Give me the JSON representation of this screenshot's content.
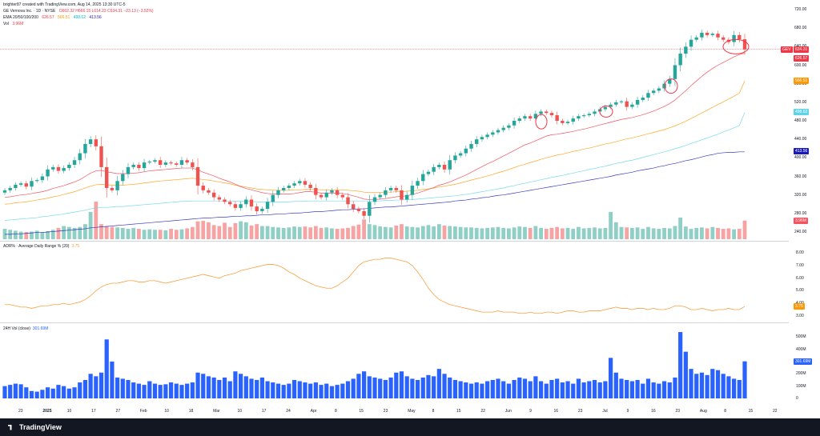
{
  "header": {
    "created": "brighter87 created with TradingView.com, Aug 14, 2025 13:30 UTC-5",
    "symbol": "GE Vernova Inc. · 1D · NYSE",
    "ohlc": "O662.32 H666.15 L614.23 C634.31 −23.13 (−3.52%)",
    "ema_label": "EMA 20/50/100/200",
    "ema_values": [
      "626.57",
      "566.51",
      "498.62",
      "413.56"
    ],
    "vol_label": "Vol",
    "vol_value": "3.96M"
  },
  "price_axis": {
    "ticks": [
      "720.00",
      "680.00",
      "640.00",
      "600.00",
      "560.00",
      "520.00",
      "480.00",
      "440.00",
      "400.00",
      "360.00",
      "320.00",
      "280.00",
      "240.00"
    ],
    "tags": [
      {
        "text": "GEV",
        "color": "#f23645"
      },
      {
        "text": "634.31",
        "color": "#f23645"
      },
      {
        "text": "626.57",
        "color": "#f23645"
      },
      {
        "text": "566.51",
        "color": "#ff9800"
      },
      {
        "text": "498.62",
        "color": "#5fd3e8"
      },
      {
        "text": "413.56",
        "color": "#1a1ab8"
      },
      {
        "text": "3.96M",
        "color": "#f7525f"
      }
    ]
  },
  "adr_pane": {
    "title": "ADR% · Average Daily Range % (20)",
    "value": "3.75",
    "ticks": [
      "8.00",
      "7.00",
      "6.00",
      "5.00",
      "4.00",
      "3.00"
    ],
    "tag": "3.75"
  },
  "vol24_pane": {
    "title": "24H Vol (close)",
    "value": "301.69M",
    "ticks": [
      "500M",
      "400M",
      "300M",
      "200M",
      "100M",
      "0"
    ],
    "tag": "301.69M"
  },
  "time_axis": {
    "labels": [
      "23",
      "2025",
      "10",
      "17",
      "27",
      "Feb",
      "10",
      "18",
      "Mar",
      "10",
      "17",
      "24",
      "Apr",
      "8",
      "15",
      "23",
      "May",
      "8",
      "15",
      "22",
      "Jun",
      "9",
      "16",
      "23",
      "Jul",
      "9",
      "16",
      "23",
      "Aug",
      "8",
      "15",
      "22"
    ]
  },
  "footer": {
    "brand": "TradingView"
  },
  "colors": {
    "up": "#26a69a",
    "down": "#ef5350",
    "ema20": "#f23645",
    "ema50": "#ff9800",
    "ema100": "#5fd3e8",
    "ema200": "#1a1ab8",
    "adr": "#f7a040",
    "vol24": "#2962ff"
  },
  "chart_data": [
    {
      "type": "candlestick",
      "title": "GE Vernova Inc. · 1D · NYSE",
      "ylim": [
        240,
        720
      ],
      "close": [
        330,
        335,
        342,
        345,
        338,
        350,
        352,
        360,
        375,
        380,
        372,
        378,
        385,
        395,
        410,
        430,
        440,
        425,
        380,
        335,
        330,
        350,
        365,
        380,
        385,
        378,
        390,
        392,
        395,
        385,
        390,
        388,
        385,
        395,
        390,
        380,
        340,
        330,
        325,
        315,
        310,
        305,
        300,
        292,
        300,
        310,
        295,
        285,
        290,
        305,
        320,
        330,
        335,
        340,
        345,
        350,
        342,
        335,
        320,
        315,
        325,
        330,
        320,
        315,
        300,
        290,
        285,
        275,
        305,
        315,
        320,
        330,
        335,
        330,
        310,
        320,
        340,
        350,
        365,
        370,
        380,
        385,
        375,
        395,
        405,
        410,
        420,
        430,
        440,
        445,
        450,
        455,
        460,
        465,
        470,
        480,
        485,
        490,
        485,
        495,
        500,
        497,
        492,
        480,
        475,
        478,
        485,
        490,
        492,
        495,
        500,
        505,
        510,
        515,
        520,
        522,
        510,
        515,
        525,
        530,
        540,
        545,
        550,
        560,
        570,
        600,
        625,
        640,
        655,
        660,
        670,
        665,
        668,
        660,
        655,
        650,
        665,
        656,
        634
      ],
      "ema20": [
        315,
        316,
        318,
        320,
        321,
        323,
        325,
        327,
        330,
        334,
        337,
        340,
        344,
        348,
        353,
        360,
        367,
        372,
        373,
        370,
        368,
        366,
        366,
        366,
        367,
        368,
        370,
        372,
        373,
        374,
        375,
        376,
        377,
        378,
        378,
        378,
        374,
        369,
        365,
        361,
        356,
        352,
        348,
        343,
        338,
        334,
        331,
        328,
        325,
        323,
        322,
        322,
        322,
        322,
        323,
        325,
        327,
        327,
        326,
        324,
        324,
        324,
        324,
        323,
        321,
        318,
        315,
        311,
        310,
        310,
        311,
        312,
        314,
        316,
        317,
        318,
        321,
        324,
        328,
        332,
        336,
        341,
        344,
        348,
        353,
        358,
        363,
        369,
        375,
        381,
        387,
        392,
        398,
        404,
        410,
        416,
        422,
        428,
        432,
        437,
        442,
        447,
        450,
        451,
        453,
        455,
        457,
        460,
        462,
        465,
        468,
        471,
        474,
        477,
        480,
        483,
        485,
        487,
        490,
        493,
        497,
        501,
        506,
        511,
        517,
        525,
        535,
        545,
        556,
        566,
        576,
        585,
        593,
        600,
        606,
        612,
        618,
        623,
        626
      ],
      "ema50": [
        300,
        301,
        303,
        304,
        305,
        307,
        309,
        311,
        313,
        316,
        318,
        321,
        324,
        327,
        331,
        335,
        339,
        342,
        343,
        342,
        341,
        341,
        341,
        342,
        343,
        344,
        346,
        347,
        349,
        350,
        351,
        352,
        353,
        354,
        355,
        356,
        355,
        353,
        352,
        350,
        348,
        346,
        344,
        341,
        339,
        337,
        335,
        333,
        332,
        331,
        330,
        330,
        330,
        330,
        331,
        331,
        332,
        332,
        332,
        331,
        331,
        331,
        331,
        331,
        330,
        329,
        328,
        326,
        325,
        325,
        325,
        326,
        326,
        327,
        327,
        328,
        329,
        330,
        332,
        333,
        335,
        337,
        339,
        341,
        343,
        346,
        349,
        352,
        355,
        358,
        361,
        364,
        368,
        371,
        375,
        379,
        383,
        386,
        390,
        393,
        397,
        400,
        403,
        406,
        408,
        411,
        414,
        416,
        419,
        421,
        424,
        427,
        430,
        432,
        435,
        438,
        441,
        443,
        446,
        449,
        452,
        455,
        458,
        461,
        465,
        469,
        474,
        479,
        485,
        491,
        497,
        503,
        509,
        515,
        521,
        527,
        533,
        540,
        566
      ],
      "ema100": [
        265,
        266,
        267,
        268,
        269,
        270,
        271,
        273,
        274,
        276,
        277,
        279,
        281,
        283,
        285,
        287,
        290,
        292,
        293,
        293,
        294,
        295,
        295,
        296,
        297,
        298,
        299,
        300,
        301,
        302,
        303,
        304,
        305,
        306,
        306,
        307,
        307,
        307,
        307,
        307,
        307,
        307,
        307,
        306,
        306,
        306,
        306,
        305,
        305,
        305,
        305,
        305,
        305,
        305,
        306,
        306,
        306,
        307,
        307,
        307,
        307,
        307,
        307,
        307,
        307,
        307,
        307,
        307,
        307,
        307,
        307,
        308,
        308,
        309,
        309,
        310,
        310,
        311,
        312,
        313,
        314,
        315,
        316,
        317,
        318,
        320,
        321,
        323,
        325,
        327,
        329,
        331,
        333,
        335,
        338,
        340,
        343,
        345,
        348,
        350,
        353,
        355,
        358,
        360,
        362,
        365,
        367,
        370,
        372,
        375,
        377,
        380,
        382,
        385,
        388,
        390,
        393,
        395,
        398,
        401,
        404,
        407,
        410,
        413,
        416,
        420,
        423,
        427,
        431,
        435,
        439,
        443,
        447,
        451,
        456,
        460,
        465,
        470,
        498
      ],
      "ema200": [
        235,
        235,
        236,
        236,
        237,
        238,
        239,
        239,
        240,
        241,
        242,
        243,
        244,
        245,
        246,
        247,
        249,
        250,
        251,
        252,
        253,
        254,
        255,
        256,
        257,
        258,
        259,
        260,
        261,
        262,
        263,
        264,
        265,
        266,
        267,
        268,
        269,
        270,
        270,
        271,
        272,
        272,
        273,
        274,
        274,
        275,
        275,
        276,
        277,
        277,
        278,
        279,
        279,
        280,
        281,
        281,
        282,
        283,
        284,
        284,
        285,
        286,
        287,
        288,
        288,
        289,
        290,
        290,
        291,
        292,
        293,
        294,
        294,
        295,
        296,
        297,
        298,
        299,
        300,
        301,
        302,
        303,
        304,
        305,
        307,
        308,
        309,
        311,
        312,
        314,
        315,
        317,
        319,
        320,
        322,
        324,
        326,
        328,
        330,
        332,
        334,
        336,
        338,
        340,
        342,
        344,
        346,
        348,
        350,
        352,
        354,
        356,
        358,
        360,
        363,
        365,
        367,
        369,
        372,
        374,
        376,
        378,
        381,
        383,
        386,
        388,
        391,
        394,
        396,
        399,
        402,
        405,
        407,
        410,
        411,
        412,
        412,
        413,
        413
      ],
      "last_close": 634.31
    },
    {
      "type": "bar",
      "title": "Vol",
      "values": [
        2.2,
        2.0,
        1.8,
        1.6,
        1.5,
        1.6,
        1.8,
        1.5,
        1.7,
        2.0,
        2.4,
        2.8,
        2.6,
        2.4,
        2.6,
        3.2,
        5.8,
        8.0,
        3.2,
        2.8,
        2.6,
        2.5,
        2.4,
        2.2,
        2.4,
        2.2,
        2.0,
        2.1,
        2.0,
        2.0,
        1.9,
        2.2,
        2.0,
        2.1,
        2.3,
        2.6,
        3.8,
        3.9,
        3.6,
        3.0,
        2.8,
        3.5,
        2.6,
        3.4,
        3.8,
        3.6,
        2.9,
        3.2,
        2.8,
        2.8,
        2.6,
        2.5,
        2.4,
        2.5,
        2.7,
        2.6,
        2.7,
        2.5,
        2.8,
        2.4,
        2.5,
        2.3,
        2.2,
        2.3,
        2.4,
        2.8,
        3.1,
        4.2,
        3.2,
        3.0,
        2.7,
        2.6,
        2.5,
        2.9,
        3.2,
        2.7,
        2.6,
        2.5,
        2.8,
        3.0,
        2.7,
        3.2,
        2.9,
        2.8,
        2.7,
        2.6,
        2.5,
        2.5,
        2.4,
        2.3,
        2.4,
        2.5,
        2.6,
        2.4,
        2.3,
        2.5,
        2.7,
        2.6,
        2.4,
        2.8,
        2.4,
        2.2,
        2.4,
        2.6,
        2.3,
        2.4,
        2.2,
        2.6,
        2.3,
        2.4,
        2.5,
        2.3,
        2.4,
        5.8,
        3.6,
        2.6,
        2.5,
        2.4,
        2.5,
        2.2,
        2.6,
        2.3,
        2.2,
        2.4,
        2.3,
        2.8,
        4.6,
        2.7,
        2.2,
        2.4,
        2.5,
        2.3,
        2.6,
        2.4,
        2.2,
        2.3,
        2.1,
        2.2,
        3.96
      ]
    },
    {
      "type": "line",
      "title": "ADR% · Average Daily Range % (20)",
      "ylim": [
        2.8,
        8.4
      ],
      "values": [
        3.9,
        3.9,
        3.8,
        3.7,
        3.7,
        3.6,
        3.7,
        3.8,
        3.8,
        3.9,
        3.9,
        4.0,
        3.9,
        4.0,
        4.1,
        4.3,
        4.6,
        5.0,
        5.3,
        5.5,
        5.6,
        5.6,
        5.7,
        5.8,
        5.8,
        5.7,
        5.7,
        5.8,
        5.8,
        5.7,
        5.6,
        5.7,
        5.8,
        5.9,
        6.0,
        6.1,
        6.2,
        6.3,
        6.2,
        6.1,
        6.0,
        6.2,
        6.3,
        6.4,
        6.6,
        6.7,
        6.8,
        6.9,
        7.0,
        7.1,
        7.1,
        7.0,
        6.8,
        6.5,
        6.3,
        6.0,
        5.8,
        5.6,
        5.4,
        5.3,
        5.2,
        5.2,
        5.4,
        5.7,
        6.0,
        6.5,
        7.0,
        7.3,
        7.4,
        7.5,
        7.5,
        7.6,
        7.6,
        7.5,
        7.4,
        7.3,
        7.0,
        6.5,
        5.9,
        5.2,
        4.7,
        4.3,
        4.1,
        3.9,
        3.8,
        3.7,
        3.6,
        3.5,
        3.4,
        3.3,
        3.3,
        3.3,
        3.4,
        3.3,
        3.3,
        3.3,
        3.2,
        3.2,
        3.3,
        3.2,
        3.2,
        3.3,
        3.3,
        3.2,
        3.3,
        3.4,
        3.4,
        3.3,
        3.3,
        3.4,
        3.4,
        3.4,
        3.5,
        3.6,
        3.7,
        3.6,
        3.6,
        3.5,
        3.6,
        3.6,
        3.5,
        3.6,
        3.5,
        3.5,
        3.6,
        3.8,
        3.8,
        3.7,
        3.5,
        3.5,
        3.6,
        3.5,
        3.4,
        3.5,
        3.5,
        3.6,
        3.5,
        3.5,
        3.75
      ],
      "last": 3.75
    },
    {
      "type": "bar",
      "title": "24H Vol (close)",
      "ylim": [
        0,
        560
      ],
      "values": [
        100,
        110,
        120,
        115,
        90,
        60,
        55,
        70,
        90,
        80,
        110,
        100,
        80,
        90,
        130,
        150,
        200,
        180,
        210,
        480,
        300,
        170,
        160,
        150,
        130,
        120,
        110,
        140,
        120,
        110,
        115,
        130,
        120,
        110,
        120,
        130,
        210,
        200,
        180,
        170,
        150,
        170,
        140,
        220,
        200,
        180,
        160,
        150,
        170,
        140,
        130,
        120,
        110,
        120,
        150,
        140,
        130,
        120,
        130,
        110,
        120,
        100,
        110,
        120,
        140,
        160,
        200,
        220,
        180,
        170,
        160,
        150,
        170,
        210,
        220,
        180,
        160,
        150,
        170,
        190,
        180,
        240,
        200,
        170,
        150,
        140,
        130,
        120,
        130,
        120,
        140,
        150,
        160,
        140,
        120,
        150,
        170,
        160,
        140,
        180,
        140,
        120,
        150,
        160,
        130,
        140,
        120,
        160,
        130,
        140,
        150,
        130,
        140,
        330,
        210,
        160,
        150,
        140,
        150,
        120,
        160,
        130,
        120,
        140,
        130,
        170,
        540,
        380,
        240,
        200,
        210,
        190,
        240,
        230,
        200,
        180,
        160,
        150,
        301.69
      ],
      "last": "301.69M"
    }
  ]
}
